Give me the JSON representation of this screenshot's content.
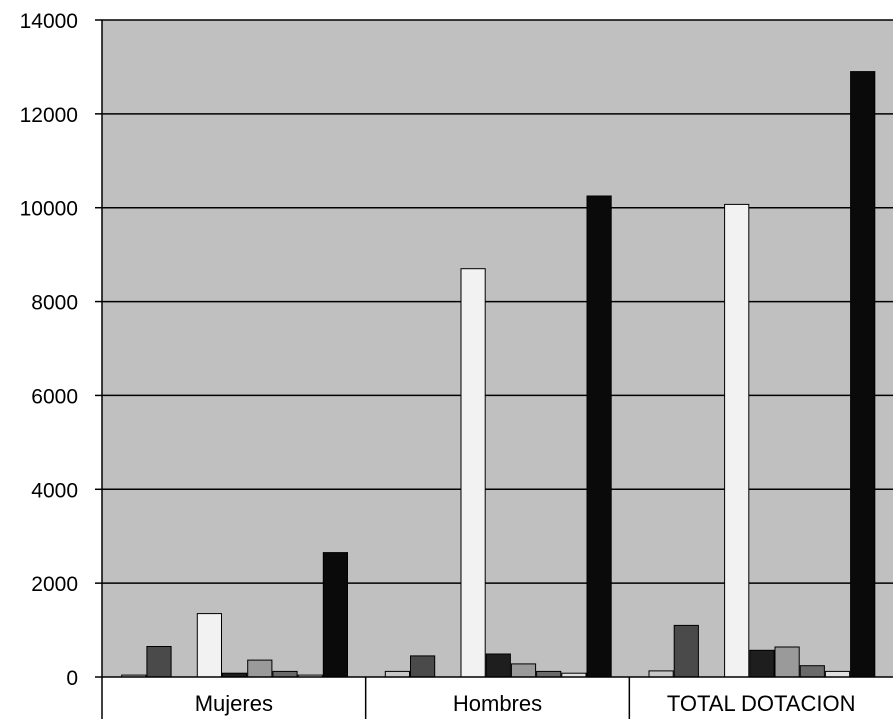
{
  "chart_data": {
    "type": "bar",
    "title": "",
    "xlabel": "",
    "ylabel": "",
    "categories": [
      "Mujeres",
      "Hombres",
      "TOTAL DOTACION"
    ],
    "ylim": [
      0,
      14000
    ],
    "yticks": [
      "0",
      "2000",
      "4000",
      "6000",
      "8000",
      "10000",
      "12000",
      "14000"
    ],
    "grid": true,
    "legend": "none",
    "plot_background": "#c0c0c0",
    "series": [
      {
        "color": "#c8c8c8",
        "values": [
          40,
          120,
          130
        ]
      },
      {
        "color": "#4a4a4a",
        "values": [
          650,
          450,
          1100
        ]
      },
      {
        "color": "#c0c0c0",
        "values": [
          0,
          0,
          0
        ]
      },
      {
        "color": "#f2f2f2",
        "values": [
          1350,
          8700,
          10070
        ]
      },
      {
        "color": "#1e1e1e",
        "values": [
          80,
          490,
          570
        ]
      },
      {
        "color": "#9a9a9a",
        "values": [
          360,
          280,
          640
        ]
      },
      {
        "color": "#6a6a6a",
        "values": [
          120,
          120,
          240
        ]
      },
      {
        "color": "#e0e0e0",
        "values": [
          40,
          80,
          120
        ]
      },
      {
        "color": "#0a0a0a",
        "values": [
          2650,
          10250,
          12900
        ]
      }
    ]
  }
}
